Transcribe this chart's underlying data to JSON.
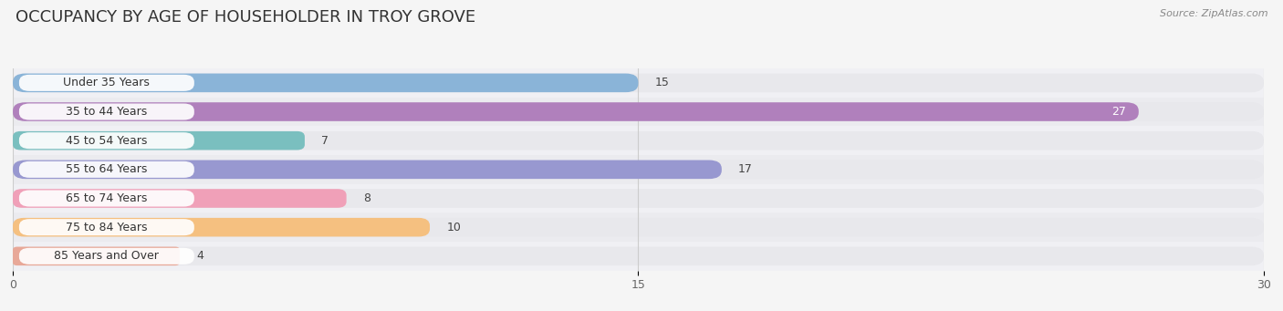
{
  "title": "OCCUPANCY BY AGE OF HOUSEHOLDER IN TROY GROVE",
  "source": "Source: ZipAtlas.com",
  "categories": [
    "Under 35 Years",
    "35 to 44 Years",
    "45 to 54 Years",
    "55 to 64 Years",
    "65 to 74 Years",
    "75 to 84 Years",
    "85 Years and Over"
  ],
  "values": [
    15,
    27,
    7,
    17,
    8,
    10,
    4
  ],
  "bar_colors": [
    "#8ab4d8",
    "#b080bc",
    "#7abfbf",
    "#9898d0",
    "#f0a0b8",
    "#f5c080",
    "#e8a898"
  ],
  "bar_bg_color": "#e8e8ec",
  "xlim": [
    0,
    30
  ],
  "xticks": [
    0,
    15,
    30
  ],
  "background_color": "#f5f5f5",
  "title_fontsize": 13,
  "label_fontsize": 9,
  "value_fontsize": 9,
  "bar_height": 0.65,
  "value_inside_idx": 1,
  "row_colors": [
    "#f0f0f4",
    "#ebebef"
  ]
}
